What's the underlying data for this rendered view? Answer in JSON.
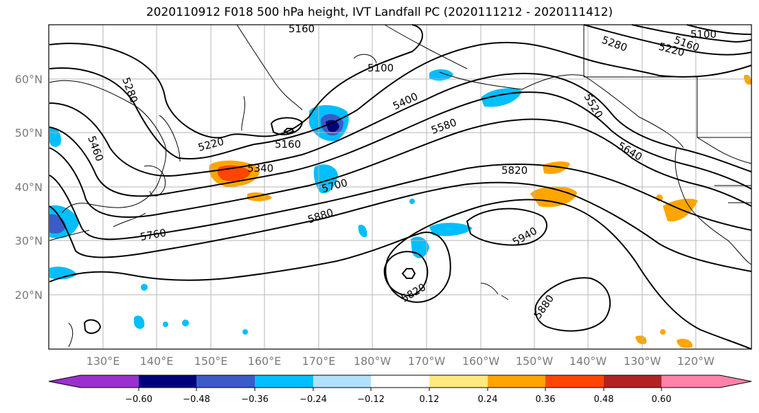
{
  "title": "2020110912 F018 500 hPa height, IVT Landfall PC (2020111212 - 2020111412)",
  "lon_labels": [
    "130°E",
    "140°E",
    "150°E",
    "160°E",
    "170°E",
    "180°W",
    "170°W",
    "160°W",
    "150°W",
    "140°W",
    "130°W",
    "120°W"
  ],
  "lat_labels": [
    "60°N",
    "50°N",
    "40°N",
    "30°N",
    "20°N"
  ],
  "contour_labels": [
    "5160",
    "5100",
    "5280",
    "5220",
    "5160",
    "5280",
    "5160",
    "5100",
    "5220",
    "5400",
    "5580",
    "5520",
    "5640",
    "5340",
    "5460",
    "5700",
    "5820",
    "5880",
    "5760",
    "5940",
    "5820",
    "5880"
  ],
  "colorbar": {
    "ticks": [
      "−0.60",
      "−0.48",
      "−0.36",
      "−0.24",
      "−0.12",
      "0.12",
      "0.24",
      "0.36",
      "0.48",
      "0.60"
    ],
    "colors": [
      "#9b30d0",
      "#00007f",
      "#3a5bc8",
      "#00bfff",
      "#b0e2ff",
      "#ffffff",
      "#ffea80",
      "#ffa500",
      "#ff4500",
      "#b22222",
      "#ff82ab"
    ]
  }
}
